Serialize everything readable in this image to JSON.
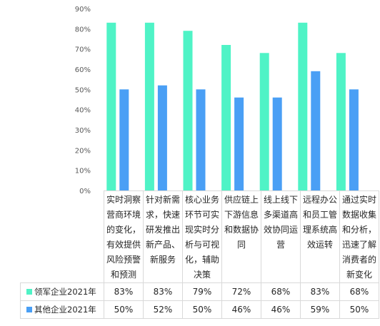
{
  "chart_data": {
    "type": "bar",
    "categories": [
      "实时洞察营商环境的变化，有效提供风险预警和预测",
      "针对新需求，快速研发推出新产品、新服务",
      "核心业务环节可实现实时分析与可视化，辅助决策",
      "供应链上下游信息和数据协同",
      "线上线下多渠道高效协同运营",
      "远程办公和员工管理系统高效运转",
      "通过实时数据收集和分析，迅速了解消费者的新变化"
    ],
    "series": [
      {
        "name": "领军企业2021年",
        "values": [
          83,
          83,
          79,
          72,
          68,
          83,
          68
        ],
        "labels": [
          "83%",
          "83%",
          "79%",
          "72%",
          "68%",
          "83%",
          "68%"
        ],
        "color": "#4ff3c6"
      },
      {
        "name": "其他企业2021年",
        "values": [
          50,
          52,
          50,
          46,
          46,
          59,
          50
        ],
        "labels": [
          "50%",
          "52%",
          "50%",
          "46%",
          "46%",
          "59%",
          "50%"
        ],
        "color": "#4a9ff5"
      }
    ],
    "y_ticks": [
      "0%",
      "10%",
      "20%",
      "30%",
      "40%",
      "50%",
      "60%",
      "70%",
      "80%",
      "90%"
    ],
    "ylim": [
      0,
      90
    ],
    "grid": false,
    "legend": "in data table"
  }
}
